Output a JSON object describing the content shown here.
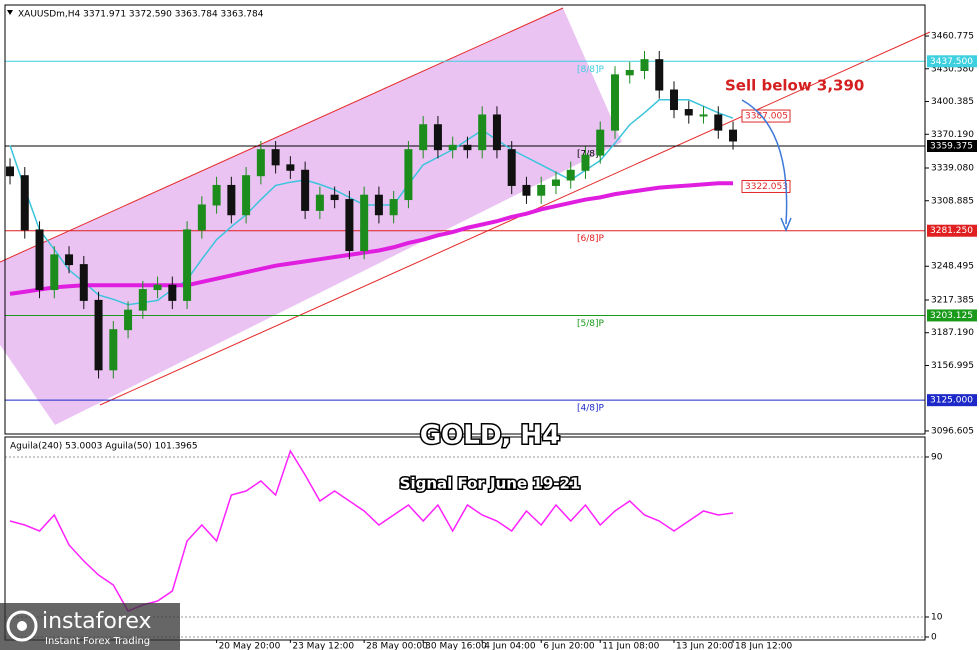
{
  "chart_data": [
    {
      "type": "candlestick",
      "header": "XAUUSDm,H4  3371.971 3372.590 3363.784 3363.784",
      "title": "GOLD, H4",
      "subtitle": "Signal For June 19-21",
      "annotation": "Sell below 3,390",
      "open": [
        3340,
        3332,
        3282,
        3227,
        3259,
        3250,
        3217,
        3153,
        3190,
        3208,
        3227,
        3231,
        3217,
        3282,
        3305,
        3323,
        3296,
        3332,
        3356,
        3342,
        3337,
        3300,
        3314,
        3310,
        3263,
        3314,
        3296,
        3310,
        3356,
        3379,
        3356,
        3360,
        3356,
        3388,
        3356,
        3323,
        3314,
        3323,
        3328,
        3337,
        3351,
        3374,
        3425,
        3429,
        3439,
        3411,
        3393,
        3388,
        3388,
        3374
      ],
      "high": [
        3348,
        3340,
        3290,
        3267,
        3267,
        3258,
        3225,
        3198,
        3216,
        3235,
        3239,
        3239,
        3290,
        3313,
        3331,
        3331,
        3340,
        3364,
        3364,
        3350,
        3345,
        3322,
        3322,
        3318,
        3322,
        3322,
        3318,
        3364,
        3387,
        3387,
        3368,
        3368,
        3396,
        3396,
        3364,
        3331,
        3331,
        3336,
        3345,
        3359,
        3382,
        3433,
        3437,
        3447,
        3447,
        3419,
        3401,
        3396,
        3396,
        3382
      ],
      "low": [
        3324,
        3274,
        3219,
        3219,
        3242,
        3209,
        3145,
        3145,
        3182,
        3200,
        3219,
        3209,
        3209,
        3274,
        3297,
        3288,
        3288,
        3324,
        3334,
        3329,
        3292,
        3292,
        3302,
        3255,
        3255,
        3288,
        3288,
        3302,
        3348,
        3348,
        3348,
        3348,
        3348,
        3348,
        3315,
        3306,
        3306,
        3315,
        3320,
        3329,
        3343,
        3366,
        3417,
        3421,
        3403,
        3385,
        3380,
        3380,
        3366,
        3356
      ],
      "close": [
        3332,
        3282,
        3227,
        3259,
        3250,
        3217,
        3153,
        3190,
        3208,
        3227,
        3231,
        3217,
        3282,
        3305,
        3323,
        3296,
        3332,
        3356,
        3342,
        3337,
        3300,
        3314,
        3310,
        3263,
        3314,
        3296,
        3310,
        3356,
        3379,
        3356,
        3360,
        3356,
        3388,
        3356,
        3323,
        3314,
        3323,
        3328,
        3337,
        3351,
        3374,
        3425,
        3429,
        3439,
        3411,
        3393,
        3388,
        3388,
        3374,
        3364
      ],
      "up_color": "#1c8c1c",
      "down_color": "#111111",
      "xlim": [
        -0.34,
        62.01
      ],
      "ylim": [
        3093.8,
        3489.4
      ],
      "yticks": [
        3460.775,
        {
          "value": 3430.58,
          "label": "3430.580"
        },
        3400.385,
        {
          "value": 3370.19,
          "label": "3370.190"
        },
        {
          "value": 3339.08,
          "label": "3339.080"
        },
        3308.885,
        3248.495,
        3217.385,
        {
          "value": 3187.19,
          "label": "3187.190"
        },
        3156.995,
        3096.605
      ],
      "overlays": [
        {
          "color": "#3cc4dc",
          "width": 1.5,
          "values": [
            3360,
            3320,
            3282,
            3264,
            3245,
            3234,
            3222,
            3218,
            3213,
            3215,
            3217,
            3227,
            3236,
            3255,
            3273,
            3285,
            3296,
            3310,
            3323,
            3326,
            3328,
            3324,
            3319,
            3312,
            3305,
            3305,
            3305,
            3324,
            3342,
            3349,
            3356,
            3365,
            3374,
            3365,
            3356,
            3349,
            3342,
            3335,
            3328,
            3337,
            3346,
            3362,
            3379,
            3390,
            3402,
            3402,
            3402,
            3396,
            3390,
            3385
          ]
        },
        {
          "color": "#e01ee0",
          "width": 4,
          "values": [
            3223,
            3225,
            3227,
            3229,
            3230,
            3231,
            3231,
            3231,
            3231,
            3231,
            3231,
            3231,
            3231,
            3234,
            3237,
            3240,
            3243,
            3246,
            3249,
            3251,
            3253,
            3255,
            3257,
            3259,
            3261,
            3263,
            3266,
            3270,
            3273,
            3277,
            3280,
            3284,
            3287,
            3290,
            3294,
            3297,
            3301,
            3304,
            3307,
            3310,
            3312,
            3315,
            3317,
            3319,
            3321,
            3322,
            3323,
            3324,
            3325,
            3325
          ]
        }
      ],
      "levels": [
        {
          "value": 3437.5,
          "label": "[8/8]P",
          "value_label": "3437.500",
          "color": "#3fd0e0"
        },
        {
          "value": 3359.375,
          "label": "[7/8]P",
          "value_label": "3359.375",
          "color": "#000000"
        },
        {
          "value": 3281.25,
          "label": "[6/8]P",
          "value_label": "3281.250",
          "color": "#e02020"
        },
        {
          "value": 3203.125,
          "label": "[5/8]P",
          "value_label": "3203.125",
          "color": "#1a9a1a"
        },
        {
          "value": 3125,
          "label": "[4/8]P",
          "value_label": "3125.000",
          "color": "#1c28c8"
        }
      ],
      "price_labels": [
        {
          "value": 3387.005,
          "label": "3387.005",
          "color": "#e02828"
        },
        {
          "value": 3322.053,
          "label": "3322.053",
          "color": "#e02828"
        }
      ]
    },
    {
      "type": "line",
      "title": "Aguila(240) 53.0003  Aguila(50) 101.3965",
      "values": [
        58,
        56,
        53,
        61,
        46,
        38,
        31,
        26,
        13,
        16,
        18,
        23,
        48,
        56,
        48,
        71,
        73,
        78,
        71,
        93,
        81,
        68,
        73,
        68,
        63,
        56,
        61,
        66,
        58,
        66,
        53,
        66,
        61,
        58,
        53,
        63,
        56,
        66,
        58,
        66,
        56,
        63,
        68,
        61,
        58,
        53,
        58,
        63,
        61,
        62
      ],
      "color": "#ff22ff",
      "xlim": [
        -0.34,
        62.01
      ],
      "ylim": [
        -1.5,
        98.5
      ],
      "yticks": [
        90,
        10,
        0
      ],
      "xticks": [
        {
          "value": 14,
          "label": "20 May 20:00"
        },
        {
          "value": 19,
          "label": "23 May 12:00"
        },
        {
          "value": 24,
          "label": "28 May 00:00"
        },
        {
          "value": 28,
          "label": "30 May 16:00"
        },
        {
          "value": 32,
          "label": "4 Jun 04:00"
        },
        {
          "value": 36,
          "label": "6 Jun 20:00"
        },
        {
          "value": 40,
          "label": "11 Jun 08:00"
        },
        {
          "value": 45,
          "label": "13 Jun 20:00"
        },
        {
          "value": 49,
          "label": "18 Jun 12:00"
        }
      ]
    }
  ],
  "watermark": {
    "brand": "instaforex",
    "tagline": "Instant Forex Trading"
  }
}
